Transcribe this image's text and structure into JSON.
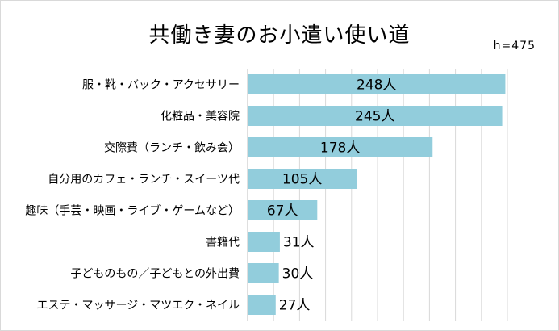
{
  "chart_data": {
    "type": "bar",
    "orientation": "horizontal",
    "title": "共働き妻のお小遣い使い道",
    "sample_size": "h=475",
    "unit": "人",
    "categories": [
      "服・靴・バック・アクセサリー",
      "化粧品・美容院",
      "交際費（ランチ・飲み会）",
      "自分用のカフェ・ランチ・スイーツ代",
      "趣味（手芸・映画・ライブ・ゲームなど）",
      "書籍代",
      "子どものもの／子どもとの外出費",
      "エステ・マッサージ・マツエク・ネイル"
    ],
    "values": [
      248,
      245,
      178,
      105,
      67,
      31,
      30,
      27
    ],
    "data_labels": [
      "248人",
      "245人",
      "178人",
      "105人",
      "67人",
      "31人",
      "30人",
      "27人"
    ],
    "xlim": [
      0,
      250
    ],
    "grid": true,
    "bar_color": "#92cddc",
    "grid_color": "#d9d9d9"
  }
}
